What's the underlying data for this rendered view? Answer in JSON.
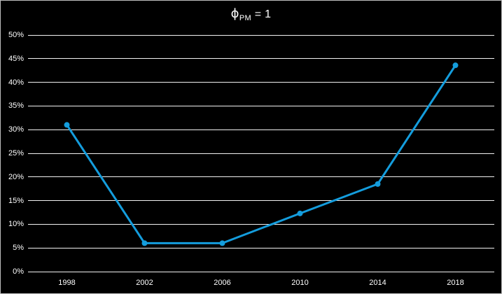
{
  "title": {
    "phi": "ϕ",
    "sub": "PM",
    "rest": " = 1"
  },
  "chart_data": {
    "type": "line",
    "title": "ϕ_PM = 1",
    "categories": [
      "1998",
      "2002",
      "2006",
      "2010",
      "2014",
      "2018"
    ],
    "series": [
      {
        "name": "phi_pm_1",
        "values": [
          31,
          6,
          6,
          12.3,
          18.5,
          43.6
        ]
      }
    ],
    "xlabel": "",
    "ylabel": "",
    "ylim": [
      0,
      50
    ],
    "y_ticks": [
      0,
      5,
      10,
      15,
      20,
      25,
      30,
      35,
      40,
      45,
      50
    ],
    "y_tick_labels": [
      "0%",
      "5%",
      "10%",
      "15%",
      "20%",
      "25%",
      "30%",
      "35%",
      "40%",
      "45%",
      "50%"
    ],
    "grid": true,
    "legend": false,
    "marker": "circle",
    "colors": {
      "line": "#149DDD",
      "gridline": "#F2F2F2",
      "text": "#FFFFFF",
      "background": "#000000",
      "frame_border": "#BDBDBD"
    }
  }
}
